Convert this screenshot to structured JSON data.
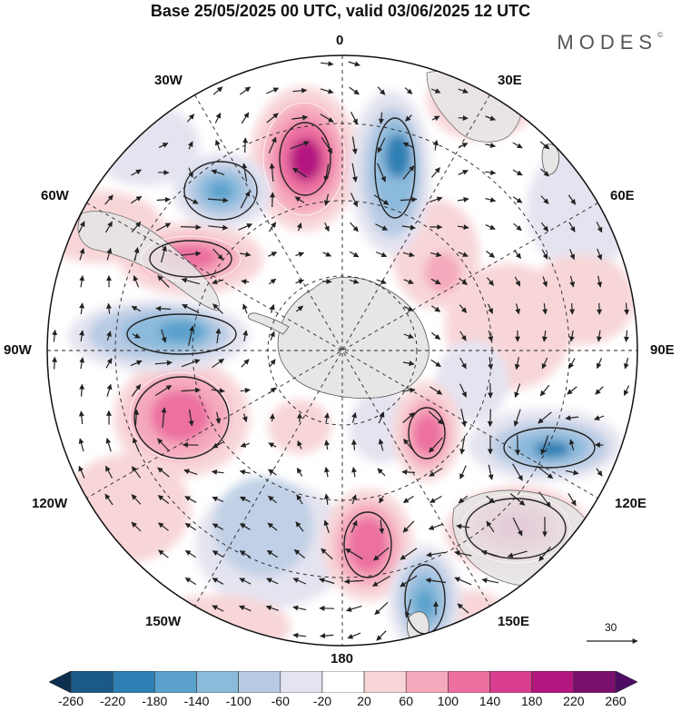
{
  "title": "Base 25/05/2025 00 UTC, valid 03/06/2025 12 UTC",
  "brand": "MODES",
  "brand_mark": "©",
  "longitude_labels": {
    "top": "0",
    "top_left": "30W",
    "top_right": "30E",
    "upper_left": "60W",
    "upper_right": "60E",
    "left": "90W",
    "right": "90E",
    "lower_left": "120W",
    "lower_right": "120E",
    "bottom_left": "150W",
    "bottom_right": "150E",
    "bottom": "180"
  },
  "reference_vector": {
    "value": "30"
  },
  "colorbar": {
    "labels": [
      "-260",
      "-220",
      "-180",
      "-140",
      "-100",
      "-60",
      "-20",
      "20",
      "60",
      "100",
      "140",
      "180",
      "220",
      "260"
    ],
    "colors": [
      "#0d2f4f",
      "#1b5a87",
      "#2e7fb3",
      "#5aa1cc",
      "#8bbadb",
      "#b8cbe3",
      "#e4e4f0",
      "#ffffff",
      "#f8d6d8",
      "#f5a9bc",
      "#ec6fa0",
      "#db3d8e",
      "#b4177f",
      "#7a0f6e",
      "#4d0b63"
    ]
  },
  "anomaly_colors": {
    "pos_light": "#f8d6d8",
    "pos_mid": "#f5a9bc",
    "pos_strong": "#ec6fa0",
    "pos_vstrong": "#db3d8e",
    "pos_extreme": "#b4177f",
    "neg_light": "#e4e4f0",
    "neg_mid": "#b8cbe3",
    "neg_strong": "#8bbadb",
    "neg_vstrong": "#5aa1cc",
    "neg_extreme": "#2e7fb3",
    "land": "#e6e6e6"
  }
}
